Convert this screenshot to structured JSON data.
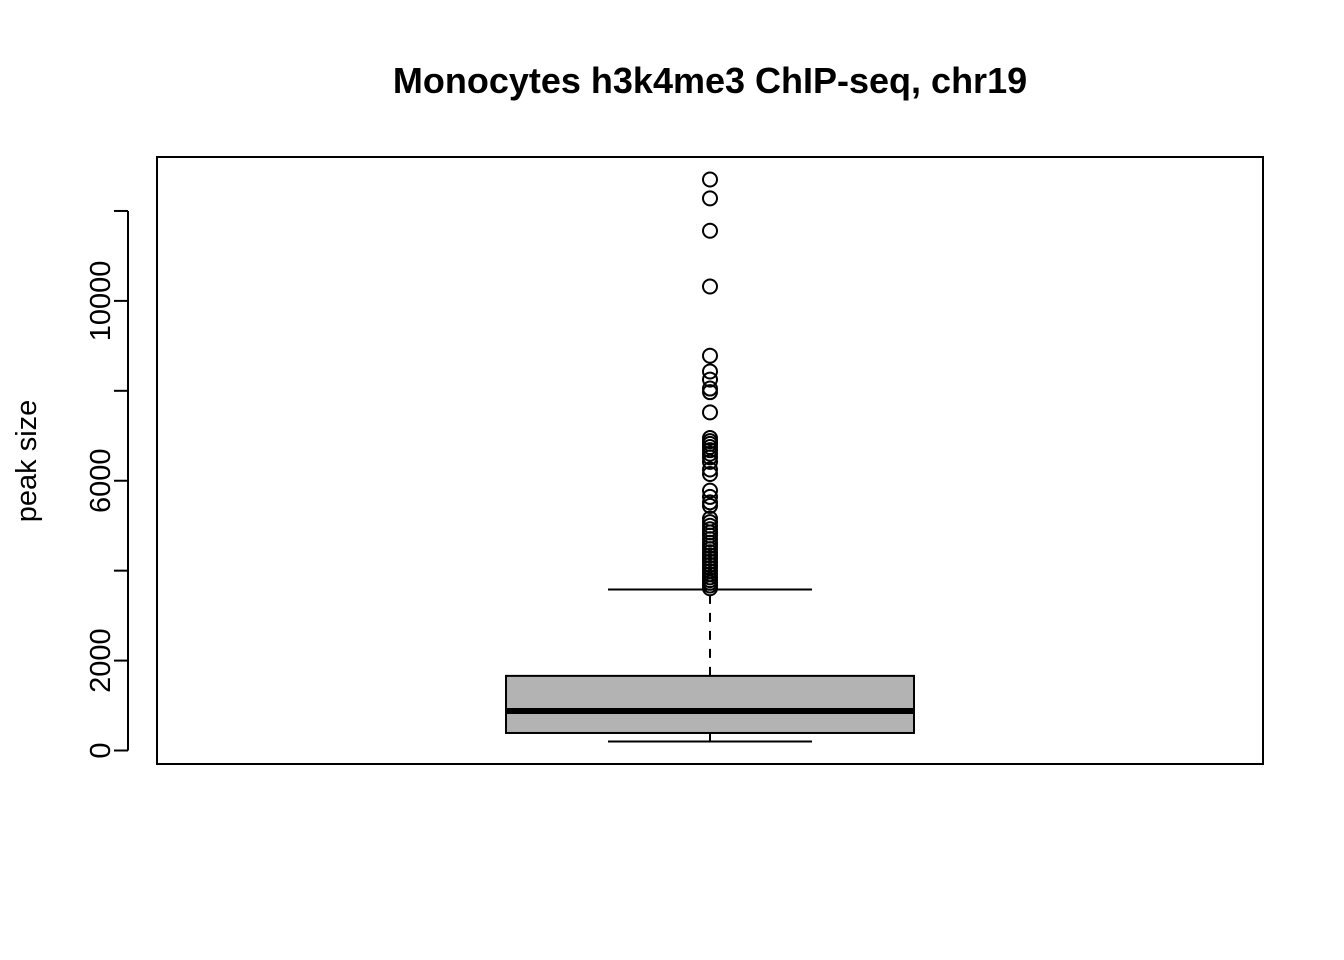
{
  "chart_data": {
    "type": "boxplot",
    "title": "Monocytes h3k4me3 ChIP-seq, chr19",
    "xlabel": "",
    "ylabel": "peak size",
    "ylim": [
      -300,
      13200
    ],
    "yticks": [
      0,
      2000,
      4000,
      6000,
      8000,
      10000,
      12000
    ],
    "ytick_labels": [
      "0",
      "2000",
      "",
      "6000",
      "",
      "10000",
      ""
    ],
    "grid": false,
    "legend": "none",
    "box": {
      "whisker_low": 200,
      "q1": 390,
      "median": 880,
      "q3": 1660,
      "whisker_high": 3580
    },
    "outliers": [
      12700,
      12280,
      11560,
      10320,
      8780,
      8430,
      8250,
      8050,
      7970,
      7520,
      6950,
      6880,
      6820,
      6750,
      6680,
      6600,
      6520,
      6420,
      6250,
      6150,
      5780,
      5640,
      5520,
      5440,
      5160,
      5080,
      5000,
      4920,
      4850,
      4780,
      4700,
      4620,
      4550,
      4480,
      4410,
      4340,
      4270,
      4200,
      4130,
      4060,
      3990,
      3920,
      3850,
      3790,
      3730,
      3670,
      3610
    ],
    "colors": {
      "box_fill": "#b3b3b3",
      "stroke": "#000000"
    }
  }
}
